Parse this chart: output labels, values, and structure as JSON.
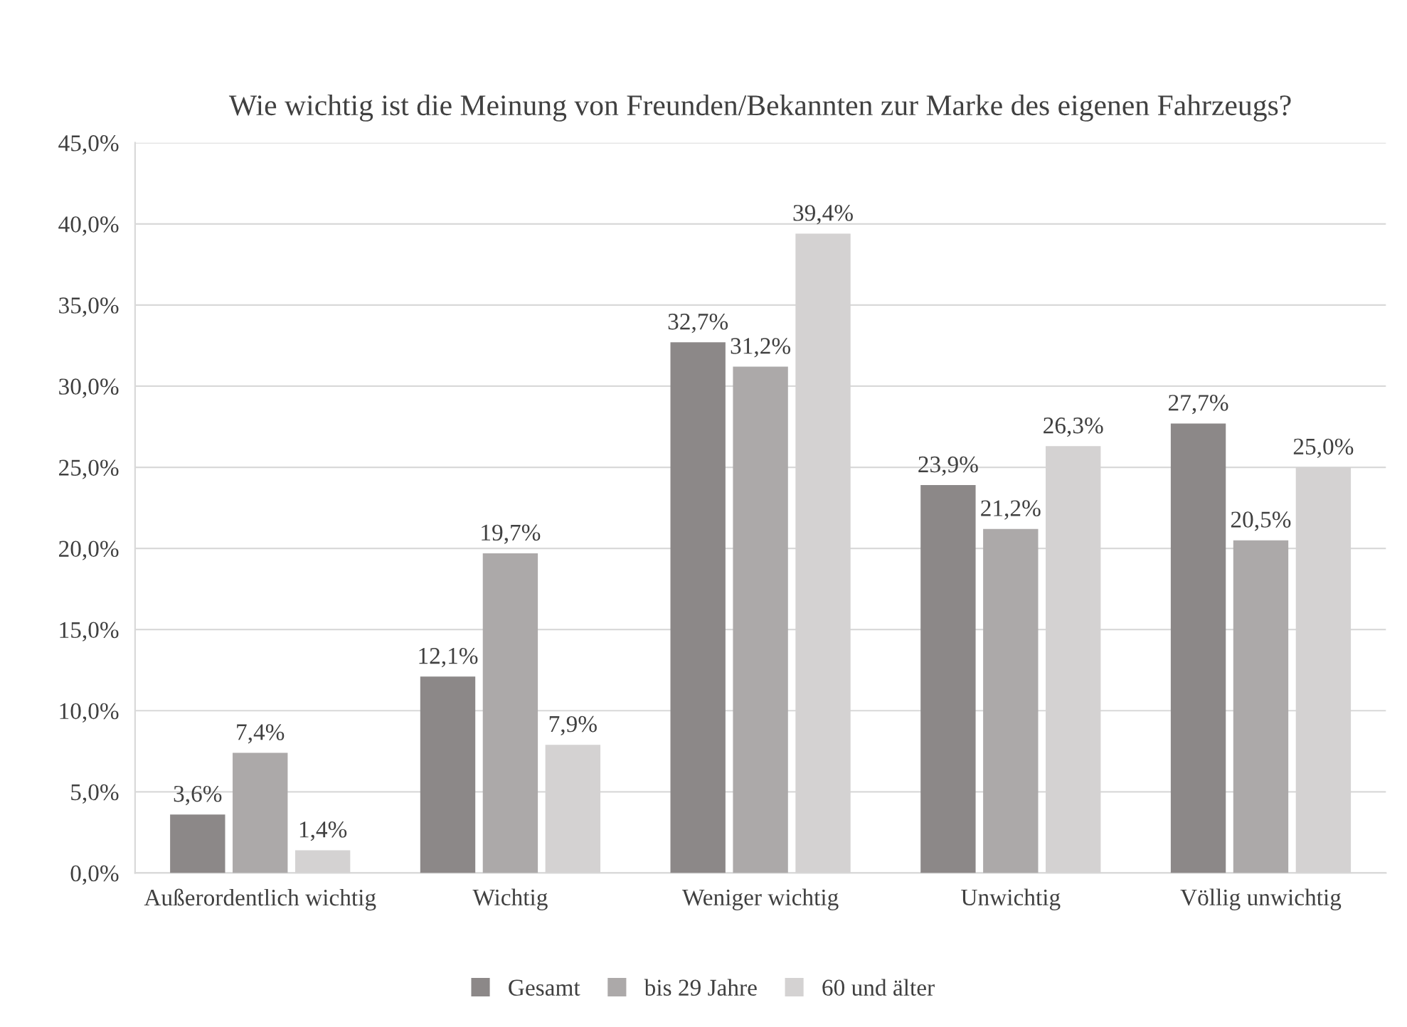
{
  "chart_data": {
    "type": "bar",
    "title": "Wie wichtig ist die Meinung von Freunden/Bekannten zur Marke des eigenen Fahrzeugs?",
    "categories": [
      "Außerordentlich wichtig",
      "Wichtig",
      "Weniger wichtig",
      "Unwichtig",
      "Völlig unwichtig"
    ],
    "series": [
      {
        "name": "Gesamt",
        "color": "#8c8888",
        "values": [
          3.6,
          12.1,
          32.7,
          23.9,
          27.7
        ],
        "value_labels": [
          "3,6%",
          "12,1%",
          "32,7%",
          "23,9%",
          "27,7%"
        ]
      },
      {
        "name": "bis 29 Jahre",
        "color": "#aca9a9",
        "values": [
          7.4,
          19.7,
          31.2,
          21.2,
          20.5
        ],
        "value_labels": [
          "7,4%",
          "19,7%",
          "31,2%",
          "21,2%",
          "20,5%"
        ]
      },
      {
        "name": "60 und älter",
        "color": "#d4d2d2",
        "values": [
          1.4,
          7.9,
          39.4,
          26.3,
          25.0
        ],
        "value_labels": [
          "1,4%",
          "7,9%",
          "39,4%",
          "26,3%",
          "25,0%"
        ]
      }
    ],
    "ylim": [
      0,
      45
    ],
    "yticks": [
      {
        "value": 0,
        "label": "0,0%"
      },
      {
        "value": 5,
        "label": "5,0%"
      },
      {
        "value": 10,
        "label": "10,0%"
      },
      {
        "value": 15,
        "label": "15,0%"
      },
      {
        "value": 20,
        "label": "20,0%"
      },
      {
        "value": 25,
        "label": "25,0%"
      },
      {
        "value": 30,
        "label": "30,0%"
      },
      {
        "value": 35,
        "label": "35,0%"
      },
      {
        "value": 40,
        "label": "40,0%"
      },
      {
        "value": 45,
        "label": "45,0%"
      }
    ],
    "grid": "y",
    "legend": "bottom"
  }
}
